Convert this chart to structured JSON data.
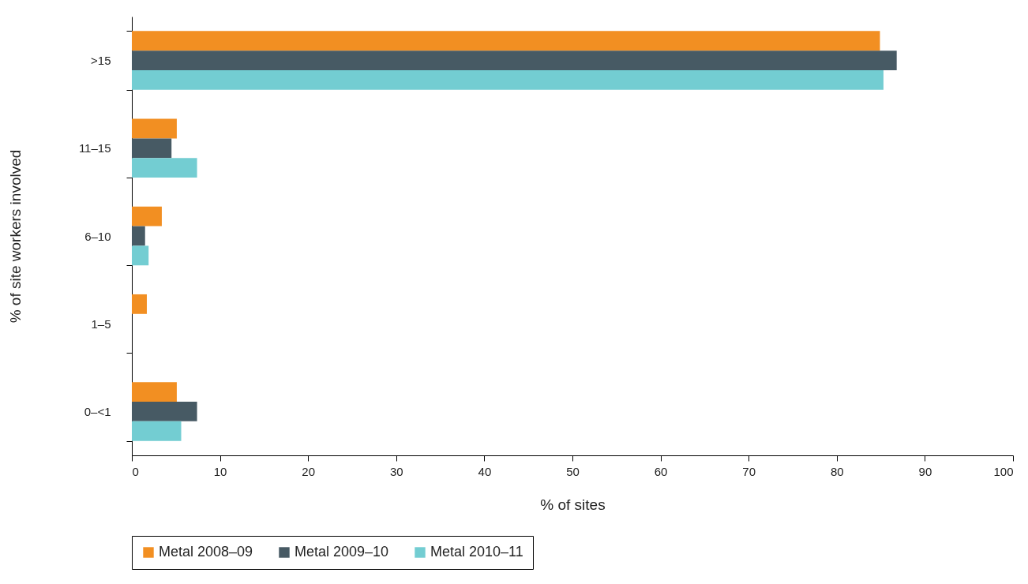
{
  "chart_data": {
    "type": "bar",
    "orientation": "horizontal",
    "xlabel": "% of sites",
    "ylabel": "% of site workers involved",
    "categories": [
      ">15",
      "11–15",
      "6–10",
      "1–5",
      "0–<1"
    ],
    "series": [
      {
        "name": "Metal 2008–09",
        "color": "#f28f22",
        "values": [
          84.9,
          5.1,
          3.4,
          1.7,
          5.1
        ]
      },
      {
        "name": "Metal 2009–10",
        "color": "#475a64",
        "values": [
          86.8,
          4.5,
          1.5,
          null,
          7.4
        ]
      },
      {
        "name": "Metal 2010–11",
        "color": "#73cdd2",
        "values": [
          85.3,
          7.4,
          1.9,
          null,
          5.6
        ]
      }
    ],
    "xlim": [
      0,
      100
    ],
    "xticks": [
      0,
      10,
      20,
      30,
      40,
      50,
      60,
      70,
      80,
      90,
      100
    ],
    "legend": "bottom"
  }
}
